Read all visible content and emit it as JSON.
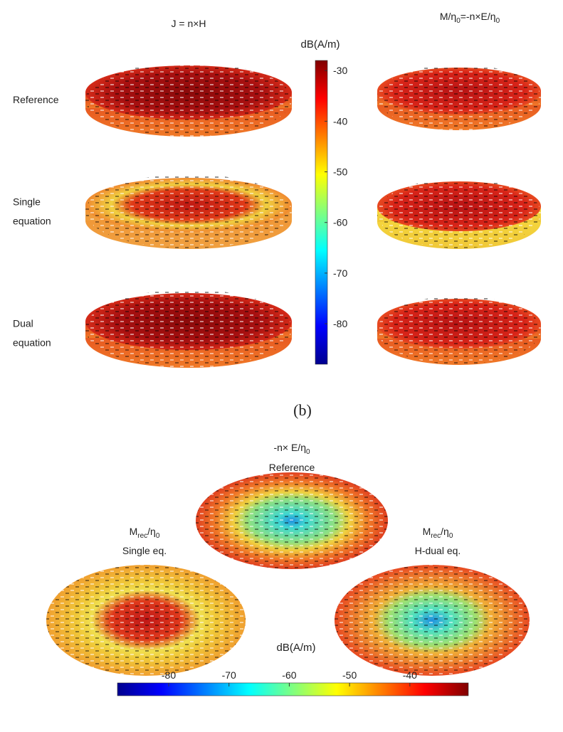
{
  "top": {
    "columns": [
      {
        "parts": [
          "J = n×H"
        ]
      },
      {
        "parts": [
          "M/η",
          "0",
          "=-n×E/η",
          "0"
        ]
      }
    ],
    "rows": [
      {
        "lines": [
          "Reference"
        ]
      },
      {
        "lines": [
          "Single",
          "equation"
        ]
      },
      {
        "lines": [
          "Dual",
          "equation"
        ]
      }
    ],
    "colorbar": {
      "label": "dB(A/m)",
      "clim": [
        -88,
        -28
      ],
      "ticks": [
        -30,
        -40,
        -50,
        -60,
        -70,
        -80
      ]
    },
    "caption": "(b)"
  },
  "bottom": {
    "views": [
      {
        "parts": [
          "-n× E/η",
          "0"
        ],
        "subtitle": "Reference"
      },
      {
        "parts": [
          "M",
          "rec",
          "/η",
          "0"
        ],
        "subtitle": "Single eq."
      },
      {
        "parts": [
          "M",
          "rec",
          "/η",
          "0"
        ],
        "subtitle": "H-dual eq."
      }
    ],
    "colorbar": {
      "label": "dB(A/m)",
      "clim": [
        -88.5,
        -30.3
      ],
      "ticks": [
        -80,
        -70,
        -60,
        -50,
        -40
      ]
    }
  }
}
